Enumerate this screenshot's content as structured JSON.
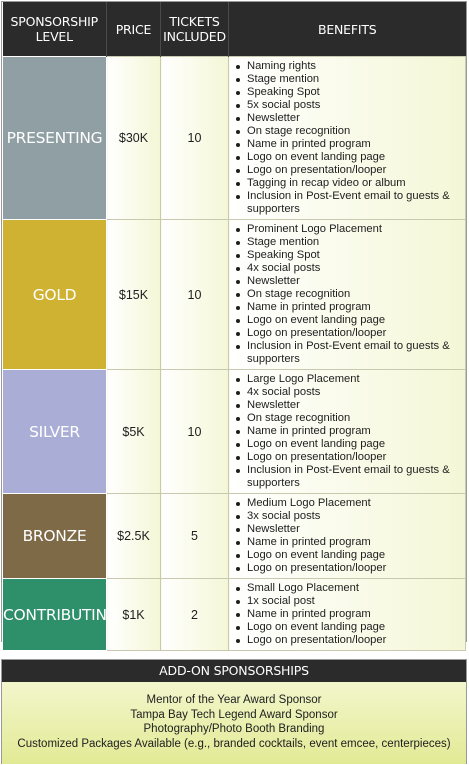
{
  "headers": {
    "level": "SPONSORSHIP LEVEL",
    "price": "PRICE",
    "tickets": "TICKETS INCLUDED",
    "benefits": "BENEFITS"
  },
  "tiers": [
    {
      "level": "PRESENTING",
      "price": "$30K",
      "tickets": "10",
      "color": "#909fa4",
      "benefits": [
        "Naming rights",
        "Stage mention",
        "Speaking Spot",
        "5x social posts",
        "Newsletter",
        "On stage recognition",
        "Name in printed program",
        "Logo on event landing page",
        "Logo on presentation/looper",
        "Tagging in recap video or album",
        "Inclusion in Post-Event email to guests & supporters"
      ]
    },
    {
      "level": "GOLD",
      "price": "$15K",
      "tickets": "10",
      "color": "#cfb232",
      "benefits": [
        "Prominent Logo Placement",
        "Stage mention",
        "Speaking Spot",
        "4x social posts",
        "Newsletter",
        "On stage recognition",
        "Name in printed program",
        "Logo on event landing page",
        "Logo on presentation/looper",
        "Inclusion in Post-Event email to guests & supporters"
      ]
    },
    {
      "level": "SILVER",
      "price": "$5K",
      "tickets": "10",
      "color": "#aaaed6",
      "benefits": [
        "Large Logo Placement",
        "4x social posts",
        "Newsletter",
        "On stage recognition",
        "Name in printed program",
        "Logo on event landing page",
        "Logo on presentation/looper",
        "Inclusion in Post-Event email to guests & supporters"
      ]
    },
    {
      "level": "BRONZE",
      "price": "$2.5K",
      "tickets": "5",
      "color": "#7f6a48",
      "benefits": [
        "Medium Logo Placement",
        "3x social posts",
        "Newsletter",
        "Name in printed program",
        "Logo on event landing page",
        "Logo on presentation/looper"
      ]
    },
    {
      "level": "CONTRIBUTING",
      "price": "$1K",
      "tickets": "2",
      "color": "#2e8f6b",
      "benefits": [
        "Small Logo Placement",
        "1x social post",
        "Name in printed program",
        "Logo on event landing page",
        "Logo on presentation/looper"
      ]
    }
  ],
  "addon": {
    "title": "ADD-ON SPONSORSHIPS",
    "items": [
      "Mentor of the Year Award Sponsor",
      "Tampa Bay Tech Legend Award Sponsor",
      "Photography/Photo Booth Branding",
      "Customized Packages Available (e.g., branded cocktails, event emcee, centerpieces)"
    ]
  }
}
